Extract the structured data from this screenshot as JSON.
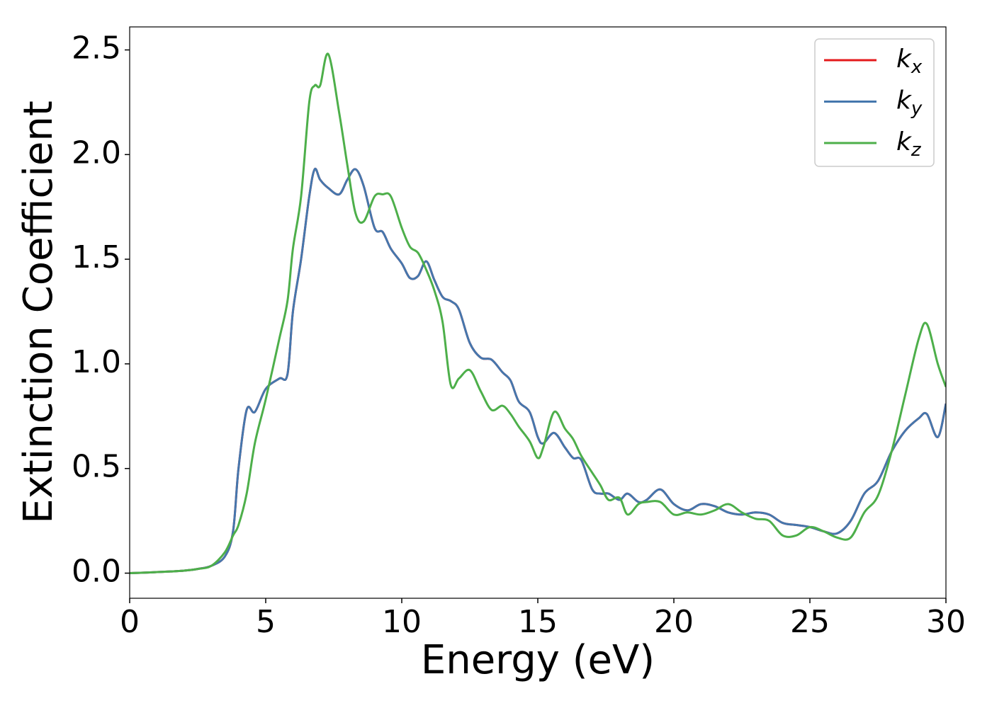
{
  "chart_data": {
    "type": "line",
    "xlabel": "Energy (eV)",
    "ylabel": "Extinction Coefficient",
    "x": [
      0,
      0.5,
      1,
      1.5,
      2,
      2.5,
      3,
      3.5,
      3.8,
      4,
      4.3,
      4.6,
      5,
      5.5,
      5.8,
      6,
      6.3,
      6.6,
      6.8,
      7,
      7.3,
      7.7,
      8,
      8.3,
      8.6,
      9,
      9.3,
      9.6,
      10,
      10.3,
      10.6,
      10.9,
      11.2,
      11.5,
      11.8,
      12.1,
      12.5,
      12.9,
      13.3,
      13.7,
      14,
      14.3,
      14.7,
      15,
      15.2,
      15.6,
      16,
      16.3,
      16.6,
      17,
      17.3,
      17.6,
      18,
      18.3,
      18.7,
      19,
      19.5,
      20,
      20.5,
      21,
      21.5,
      22,
      22.5,
      23,
      23.5,
      24,
      24.5,
      25,
      25.5,
      26,
      26.5,
      27,
      27.5,
      28,
      28.5,
      29,
      29.3,
      29.7,
      30
    ],
    "series": [
      {
        "name": "kx",
        "color": "#e41a1c",
        "values": [
          0,
          0.002,
          0.005,
          0.008,
          0.012,
          0.02,
          0.035,
          0.08,
          0.2,
          0.5,
          0.78,
          0.77,
          0.88,
          0.93,
          0.95,
          1.25,
          1.5,
          1.8,
          1.93,
          1.88,
          1.84,
          1.81,
          1.88,
          1.93,
          1.85,
          1.65,
          1.63,
          1.55,
          1.48,
          1.41,
          1.42,
          1.49,
          1.4,
          1.32,
          1.3,
          1.26,
          1.1,
          1.03,
          1.02,
          0.96,
          0.92,
          0.82,
          0.77,
          0.65,
          0.62,
          0.67,
          0.6,
          0.55,
          0.54,
          0.4,
          0.38,
          0.38,
          0.35,
          0.38,
          0.34,
          0.35,
          0.4,
          0.33,
          0.3,
          0.33,
          0.32,
          0.29,
          0.28,
          0.29,
          0.28,
          0.24,
          0.23,
          0.22,
          0.2,
          0.19,
          0.25,
          0.38,
          0.44,
          0.58,
          0.68,
          0.74,
          0.76,
          0.65,
          0.81
        ]
      },
      {
        "name": "ky",
        "color": "#4577ad",
        "values": [
          0,
          0.002,
          0.005,
          0.008,
          0.012,
          0.02,
          0.035,
          0.08,
          0.2,
          0.5,
          0.78,
          0.77,
          0.88,
          0.93,
          0.95,
          1.25,
          1.5,
          1.8,
          1.93,
          1.88,
          1.84,
          1.81,
          1.88,
          1.93,
          1.85,
          1.65,
          1.63,
          1.55,
          1.48,
          1.41,
          1.42,
          1.49,
          1.4,
          1.32,
          1.3,
          1.26,
          1.1,
          1.03,
          1.02,
          0.96,
          0.92,
          0.82,
          0.77,
          0.65,
          0.62,
          0.67,
          0.6,
          0.55,
          0.54,
          0.4,
          0.38,
          0.38,
          0.35,
          0.38,
          0.34,
          0.35,
          0.4,
          0.33,
          0.3,
          0.33,
          0.32,
          0.29,
          0.28,
          0.29,
          0.28,
          0.24,
          0.23,
          0.22,
          0.2,
          0.19,
          0.25,
          0.38,
          0.44,
          0.58,
          0.68,
          0.74,
          0.76,
          0.65,
          0.81
        ]
      },
      {
        "name": "kz",
        "color": "#4daf4a",
        "values": [
          0,
          0.002,
          0.005,
          0.008,
          0.012,
          0.02,
          0.035,
          0.1,
          0.18,
          0.23,
          0.38,
          0.62,
          0.83,
          1.12,
          1.3,
          1.55,
          1.8,
          2.25,
          2.33,
          2.33,
          2.48,
          2.2,
          1.95,
          1.72,
          1.68,
          1.8,
          1.81,
          1.8,
          1.65,
          1.56,
          1.53,
          1.45,
          1.35,
          1.2,
          0.9,
          0.93,
          0.97,
          0.87,
          0.78,
          0.8,
          0.76,
          0.7,
          0.63,
          0.55,
          0.6,
          0.77,
          0.69,
          0.64,
          0.56,
          0.48,
          0.42,
          0.35,
          0.36,
          0.28,
          0.33,
          0.34,
          0.34,
          0.28,
          0.29,
          0.28,
          0.3,
          0.33,
          0.29,
          0.26,
          0.25,
          0.18,
          0.18,
          0.22,
          0.2,
          0.17,
          0.17,
          0.29,
          0.37,
          0.58,
          0.85,
          1.12,
          1.19,
          1.0,
          0.89
        ]
      }
    ],
    "xlim": [
      0,
      30
    ],
    "xticks": [
      0,
      5,
      10,
      15,
      20,
      25,
      30
    ],
    "ylim": [
      -0.12,
      2.61
    ],
    "yticks": [
      {
        "value": 0,
        "label": "0.0"
      },
      0.5,
      {
        "value": 1,
        "label": "1.0"
      },
      1.5,
      {
        "value": 2,
        "label": "2.0"
      },
      2.5
    ],
    "legend": "upper right"
  }
}
